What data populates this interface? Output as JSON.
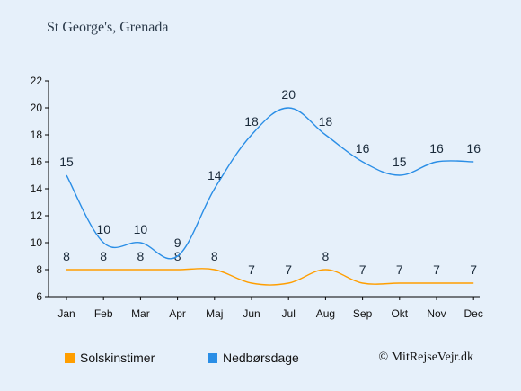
{
  "title": "St George's, Grenada",
  "credit": "© MitRejseVejr.dk",
  "chart_data": {
    "type": "line",
    "categories": [
      "Jan",
      "Feb",
      "Mar",
      "Apr",
      "Maj",
      "Jun",
      "Jul",
      "Aug",
      "Sep",
      "Okt",
      "Nov",
      "Dec"
    ],
    "series": [
      {
        "name": "Solskinstimer",
        "color": "#ff9e00",
        "values": [
          8,
          8,
          8,
          8,
          8,
          7,
          7,
          8,
          7,
          7,
          7,
          7
        ]
      },
      {
        "name": "Nedbørsdage",
        "color": "#2a8ee6",
        "values": [
          15,
          10,
          10,
          9,
          14,
          18,
          20,
          18,
          16,
          15,
          16,
          16
        ]
      }
    ],
    "ylim": [
      6,
      22
    ],
    "yticks": [
      6,
      8,
      10,
      12,
      14,
      16,
      18,
      20,
      22
    ],
    "grid": false,
    "legend": "bottom-left",
    "xlabel": "",
    "ylabel": ""
  }
}
